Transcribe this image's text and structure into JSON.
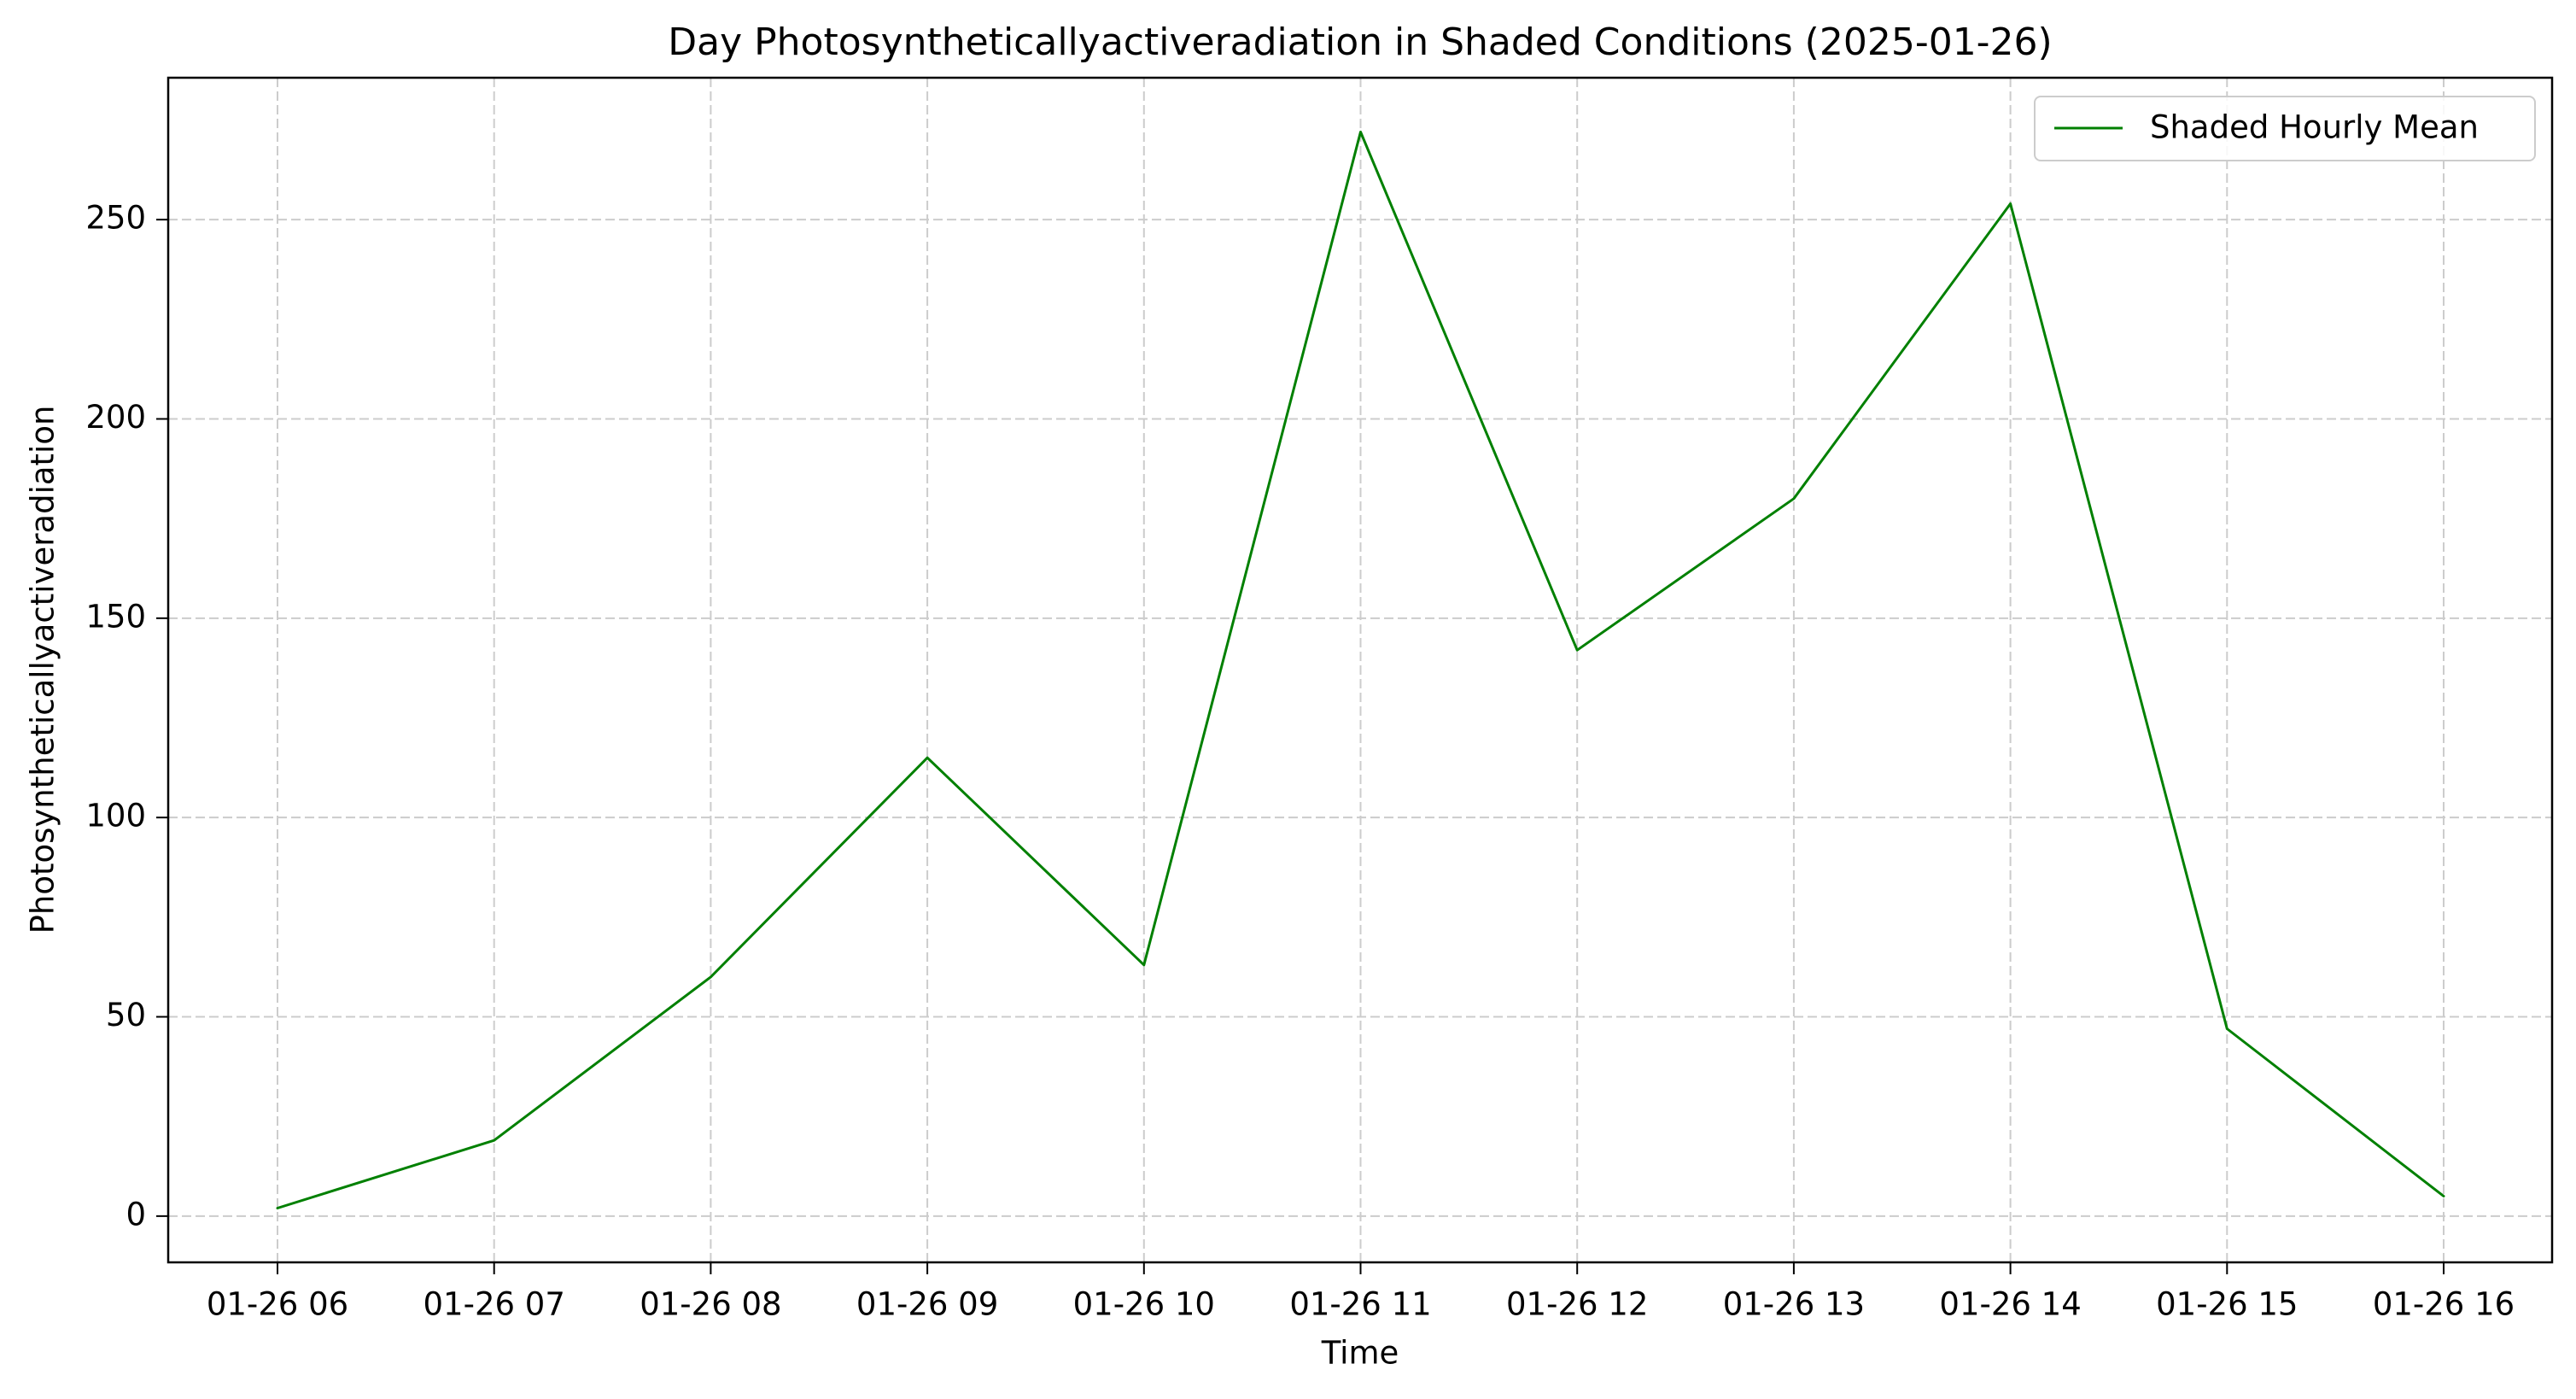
{
  "chart_data": {
    "type": "line",
    "title": "Day Photosyntheticallyactiveradiation in Shaded Conditions (2025-01-26)",
    "xlabel": "Time",
    "ylabel": "Photosyntheticallyactiveradiation",
    "x": [
      "01-26 06",
      "01-26 07",
      "01-26 08",
      "01-26 09",
      "01-26 10",
      "01-26 11",
      "01-26 12",
      "01-26 13",
      "01-26 14",
      "01-26 15",
      "01-26 16"
    ],
    "series": [
      {
        "name": "Shaded Hourly Mean",
        "color": "#008000",
        "values": [
          2,
          19,
          60,
          115,
          63,
          272,
          142,
          180,
          254,
          47,
          5
        ]
      }
    ],
    "ylim": [
      -11.6,
      285.6
    ],
    "yticks": [
      0,
      50,
      100,
      150,
      200,
      250
    ],
    "grid": true,
    "grid_color": "#cccccc",
    "legend_position": "upper right"
  }
}
